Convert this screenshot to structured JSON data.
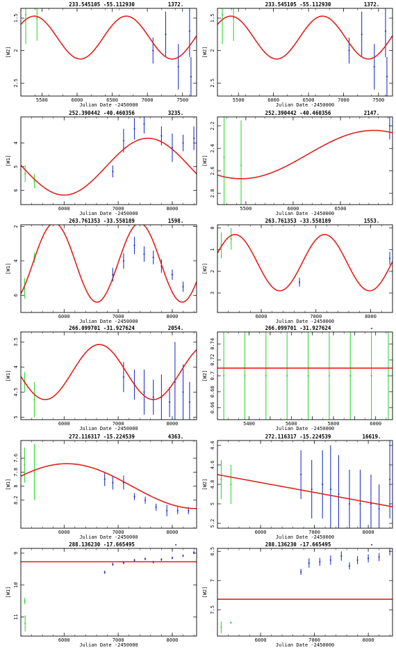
{
  "chart_data": [
    {
      "type": "scatter",
      "title_coords": "233.545105  -55.112930",
      "title_count": "1372.",
      "xlabel": "Julian Date -2450000",
      "ylabel": "[W2]",
      "xlim": [
        5200,
        7700
      ],
      "ylim": [
        2.7,
        1.35
      ],
      "xticks": [
        5500,
        6000,
        6500,
        7000,
        7500
      ],
      "yticks": [
        1.5,
        2,
        2.5
      ],
      "curve": {
        "type": "sine",
        "mean": 1.8,
        "amp": 0.33,
        "period": 1310,
        "peak_x": 5390
      },
      "green_points": [
        {
          "x": 5270,
          "y": 1.45,
          "err": 0.45
        },
        {
          "x": 5430,
          "y": 1.5,
          "err": 0.35
        }
      ],
      "blue_points": [
        {
          "x": 7080,
          "y": 2.0,
          "err": 0.2
        },
        {
          "x": 7260,
          "y": 1.75,
          "err": 0.35
        },
        {
          "x": 7440,
          "y": 2.25,
          "err": 0.35
        },
        {
          "x": 7600,
          "y": 1.7,
          "err": 0.4
        },
        {
          "x": 7620,
          "y": 2.4,
          "err": 0.3
        }
      ]
    },
    {
      "type": "scatter",
      "title_coords": "233.545105  -55.112930",
      "title_count": "1372.",
      "xlabel": "Julian Date -2450000",
      "ylabel": "[W2]",
      "xlim": [
        5200,
        7700
      ],
      "ylim": [
        2.7,
        1.35
      ],
      "xticks": [
        5500,
        6000,
        6500,
        7000,
        7500
      ],
      "yticks": [
        1.5,
        2,
        2.5
      ],
      "curve": {
        "type": "sine",
        "mean": 1.8,
        "amp": 0.33,
        "period": 1310,
        "peak_x": 5390
      },
      "green_points": [
        {
          "x": 5270,
          "y": 1.45,
          "err": 0.45
        },
        {
          "x": 5430,
          "y": 1.5,
          "err": 0.35
        }
      ],
      "blue_points": [
        {
          "x": 7080,
          "y": 2.0,
          "err": 0.2
        },
        {
          "x": 7260,
          "y": 1.75,
          "err": 0.35
        },
        {
          "x": 7440,
          "y": 2.25,
          "err": 0.35
        },
        {
          "x": 7600,
          "y": 1.7,
          "err": 0.4
        },
        {
          "x": 7620,
          "y": 2.4,
          "err": 0.3
        }
      ]
    },
    {
      "type": "scatter",
      "title_coords": "252.390442  -40.460356",
      "title_count": "3235.",
      "xlabel": "Julian Date -2450000",
      "ylabel": "[W1]",
      "xlim": [
        5200,
        8450
      ],
      "ylim": [
        6.6,
        2.9
      ],
      "xticks": [
        6000,
        7000,
        8000
      ],
      "yticks": [
        4,
        5,
        6
      ],
      "curve": {
        "type": "sine",
        "mean": 5.0,
        "amp": 1.2,
        "period": 3100,
        "peak_x": 7550
      },
      "green_points": [
        {
          "x": 5280,
          "y": 5.3,
          "err": 0.35
        },
        {
          "x": 5450,
          "y": 5.6,
          "err": 0.3
        }
      ],
      "blue_points": [
        {
          "x": 6900,
          "y": 5.2,
          "err": 0.25
        },
        {
          "x": 7100,
          "y": 3.9,
          "err": 0.5
        },
        {
          "x": 7300,
          "y": 3.4,
          "err": 0.45
        },
        {
          "x": 7480,
          "y": 3.2,
          "err": 0.4
        },
        {
          "x": 7800,
          "y": 3.7,
          "err": 0.4
        },
        {
          "x": 8000,
          "y": 4.2,
          "err": 0.6
        },
        {
          "x": 8200,
          "y": 4.0,
          "err": 0.35
        },
        {
          "x": 8400,
          "y": 3.8,
          "err": 0.5
        }
      ]
    },
    {
      "type": "scatter",
      "title_coords": "252.390442  -40.460356",
      "title_count": "2147.",
      "xlabel": "Julian Date -2450000",
      "ylabel": "[W2]",
      "xlim": [
        5200,
        7050
      ],
      "ylim": [
        2.9,
        2.12
      ],
      "xticks": [
        5500,
        6000,
        6500
      ],
      "yticks": [
        2.2,
        2.4,
        2.6,
        2.8
      ],
      "curve": {
        "type": "sine",
        "mean": 2.455,
        "amp": 0.215,
        "period": 2800,
        "peak_x": 6850
      },
      "green_points": [
        {
          "x": 5270,
          "y": 2.48,
          "err": 0.42
        },
        {
          "x": 5450,
          "y": 2.55,
          "err": 0.4
        }
      ],
      "blue_points": [
        {
          "x": 7020,
          "y": 2.2,
          "err": 0.12
        }
      ]
    },
    {
      "type": "scatter",
      "title_coords": "263.761353  -33.558189",
      "title_count": "1598.",
      "xlabel": "Julian Date -2450000",
      "ylabel": "[W1]",
      "xlim": [
        5200,
        8450
      ],
      "ylim": [
        7.0,
        1.9
      ],
      "xticks": [
        6000,
        7000,
        8000
      ],
      "yticks": [
        2,
        4,
        6
      ],
      "curve": {
        "type": "sine",
        "mean": 4.1,
        "amp": 2.3,
        "period": 1575,
        "peak_x": 5820
      },
      "green_points": [
        {
          "x": 5270,
          "y": 5.6,
          "err": 0.6
        },
        {
          "x": 5450,
          "y": 3.8,
          "err": 0.3
        }
      ],
      "blue_points": [
        {
          "x": 6900,
          "y": 4.8,
          "err": 0.4
        },
        {
          "x": 7100,
          "y": 4.0,
          "err": 0.45
        },
        {
          "x": 7300,
          "y": 3.1,
          "err": 0.5
        },
        {
          "x": 7480,
          "y": 3.6,
          "err": 0.45
        },
        {
          "x": 7650,
          "y": 3.8,
          "err": 0.4
        },
        {
          "x": 7800,
          "y": 4.3,
          "err": 0.4
        },
        {
          "x": 8000,
          "y": 4.8,
          "err": 0.3
        },
        {
          "x": 8200,
          "y": 5.5,
          "err": 0.3
        }
      ]
    },
    {
      "type": "scatter",
      "title_coords": "263.761353  -33.558189",
      "title_count": "1553.",
      "xlabel": "Julian Date -2450000",
      "ylabel": "[W2]",
      "xlim": [
        5200,
        8400
      ],
      "ylim": [
        3.9,
        -0.15
      ],
      "xticks": [
        6000,
        7000,
        8000
      ],
      "yticks": [
        0,
        1,
        2,
        3
      ],
      "curve": {
        "type": "sine",
        "mean": 1.6,
        "amp": 1.3,
        "period": 1640,
        "peak_x": 5520
      },
      "green_points": [
        {
          "x": 5270,
          "y": 0.8,
          "err": 0.6
        },
        {
          "x": 5450,
          "y": 0.5,
          "err": 0.5
        }
      ],
      "blue_points": [
        {
          "x": 6700,
          "y": 2.5,
          "err": 0.2
        },
        {
          "x": 8350,
          "y": 1.4,
          "err": 0.3
        }
      ]
    },
    {
      "type": "scatter",
      "title_coords": "266.099701  -31.927624",
      "title_count": "2054.",
      "xlabel": "Julian Date -2450000",
      "ylabel": "[W1]",
      "xlim": [
        5200,
        8450
      ],
      "ylim": [
        5.05,
        3.3
      ],
      "xticks": [
        6000,
        7000,
        8000
      ],
      "yticks": [
        3.5,
        4,
        4.5,
        5
      ],
      "curve": {
        "type": "sine",
        "mean": 4.1,
        "amp": 0.55,
        "period": 2000,
        "peak_x": 6650
      },
      "green_points": [
        {
          "x": 5270,
          "y": 4.3,
          "err": 0.2
        },
        {
          "x": 5450,
          "y": 4.65,
          "err": 0.35
        }
      ],
      "blue_points": [
        {
          "x": 7100,
          "y": 4.2,
          "err": 0.3
        },
        {
          "x": 7300,
          "y": 4.35,
          "err": 0.3
        },
        {
          "x": 7480,
          "y": 4.5,
          "err": 0.45
        },
        {
          "x": 7650,
          "y": 4.6,
          "err": 0.35
        },
        {
          "x": 7800,
          "y": 4.6,
          "err": 0.45
        },
        {
          "x": 7950,
          "y": 4.7,
          "err": 0.3
        },
        {
          "x": 8050,
          "y": 4.3,
          "err": 0.8
        },
        {
          "x": 8200,
          "y": 4.5,
          "err": 0.55
        },
        {
          "x": 8320,
          "y": 4.7,
          "err": 0.4
        }
      ]
    },
    {
      "type": "scatter",
      "title_coords": "266.099701  -31.927624",
      "title_count": "-",
      "xlabel": "Julian Date -2450000",
      "ylabel": "[W2]",
      "xlim": [
        5250,
        6080
      ],
      "ylim": [
        0.645,
        0.755
      ],
      "xticks": [
        5400,
        5500,
        5600,
        5700,
        5800,
        5900,
        6000
      ],
      "tick_labels_shown": [
        5400,
        5600,
        5800,
        6000
      ],
      "yticks": [
        0.66,
        0.68,
        0.7,
        0.72,
        0.74
      ],
      "tick_labels_y": [
        "0.66",
        "0.68",
        "0.7",
        "0.72",
        "0.74"
      ],
      "curve": {
        "type": "constant",
        "value": 0.7097
      },
      "green_points": [
        {
          "x": 5280,
          "y": 0.7,
          "err": 0.06
        },
        {
          "x": 5380,
          "y": 0.7,
          "err": 0.06
        },
        {
          "x": 5480,
          "y": 0.7,
          "err": 0.06
        },
        {
          "x": 5580,
          "y": 0.7,
          "err": 0.06
        },
        {
          "x": 5680,
          "y": 0.7,
          "err": 0.06
        },
        {
          "x": 5780,
          "y": 0.7,
          "err": 0.06
        },
        {
          "x": 5880,
          "y": 0.7,
          "err": 0.06
        },
        {
          "x": 5980,
          "y": 0.7,
          "err": 0.06
        },
        {
          "x": 6060,
          "y": 0.7,
          "err": 0.06
        }
      ],
      "blue_points": []
    },
    {
      "type": "scatter",
      "title_coords": "272.116317  -15.224539",
      "title_count": "4363.",
      "xlabel": "Julian Date -2450000",
      "ylabel": "[W1]",
      "xlim": [
        5200,
        8450
      ],
      "ylim": [
        8.6,
        7.35
      ],
      "xticks": [
        6000,
        7000,
        8000
      ],
      "yticks": [
        7.6,
        7.8,
        8,
        8.2
      ],
      "tick_labels_y": [
        "7.6",
        "7.8",
        "8",
        "8.2"
      ],
      "curve": {
        "type": "sine",
        "mean": 8.0,
        "amp": 0.32,
        "period": 4800,
        "peak_x": 6050
      },
      "green_points": [
        {
          "x": 5270,
          "y": 7.7,
          "err": 0.25
        },
        {
          "x": 5450,
          "y": 7.8,
          "err": 0.4
        }
      ],
      "blue_points": [
        {
          "x": 6750,
          "y": 7.9,
          "err": 0.1
        },
        {
          "x": 6900,
          "y": 7.95,
          "err": 0.1
        },
        {
          "x": 7100,
          "y": 7.95,
          "err": 0.1
        },
        {
          "x": 7300,
          "y": 8.15,
          "err": 0.05
        },
        {
          "x": 7500,
          "y": 8.2,
          "err": 0.05
        },
        {
          "x": 7700,
          "y": 8.3,
          "err": 0.05
        },
        {
          "x": 7900,
          "y": 8.35,
          "err": 0.08
        },
        {
          "x": 8100,
          "y": 8.35,
          "err": 0.05
        },
        {
          "x": 8300,
          "y": 8.35,
          "err": 0.05
        }
      ]
    },
    {
      "type": "scatter",
      "title_coords": "272.116317  -15.224539",
      "title_count": "16619.",
      "xlabel": "Julian Date -2450000",
      "ylabel": "[W2]",
      "xlim": [
        5200,
        8450
      ],
      "ylim": [
        5.25,
        4.35
      ],
      "xticks": [
        6000,
        7000,
        8000
      ],
      "yticks": [
        4.4,
        4.6,
        4.8,
        5,
        5.2
      ],
      "tick_labels_y": [
        "4.4",
        "4.6",
        "4.8",
        "5",
        "5.2"
      ],
      "curve": {
        "type": "linear",
        "y_at_xmin": 4.7,
        "y_at_xmax": 5.03
      },
      "green_points": [
        {
          "x": 5270,
          "y": 4.75,
          "err": 0.2
        },
        {
          "x": 5450,
          "y": 4.8,
          "err": 0.2
        }
      ],
      "blue_points": [
        {
          "x": 6750,
          "y": 4.7,
          "err": 0.25
        },
        {
          "x": 6950,
          "y": 4.85,
          "err": 0.3
        },
        {
          "x": 7150,
          "y": 4.8,
          "err": 0.35
        },
        {
          "x": 7300,
          "y": 4.85,
          "err": 0.45
        },
        {
          "x": 7450,
          "y": 4.9,
          "err": 0.4
        },
        {
          "x": 7650,
          "y": 5.0,
          "err": 0.35
        },
        {
          "x": 7850,
          "y": 5.0,
          "err": 0.35
        },
        {
          "x": 8050,
          "y": 5.0,
          "err": 0.3
        },
        {
          "x": 8200,
          "y": 5.05,
          "err": 0.25
        },
        {
          "x": 8400,
          "y": 4.75,
          "err": 0.4
        }
      ]
    },
    {
      "type": "scatter",
      "title_coords": "288.136230  -17.665495",
      "title_count": "-",
      "xlabel": "Julian Date -2450000",
      "ylabel": "[W1]",
      "xlim": [
        5200,
        8450
      ],
      "ylim": [
        11.6,
        8.85
      ],
      "xticks": [
        6000,
        7000,
        8000
      ],
      "yticks": [
        9,
        10,
        11
      ],
      "curve": {
        "type": "constant",
        "value": 9.27
      },
      "green_points": [
        {
          "x": 5270,
          "y": 10.5,
          "err": 0.1
        },
        {
          "x": 5280,
          "y": 11.2,
          "err": 0.25
        }
      ],
      "blue_points": [
        {
          "x": 6750,
          "y": 9.6,
          "err": 0.05
        },
        {
          "x": 6900,
          "y": 9.35,
          "err": 0.05
        },
        {
          "x": 7100,
          "y": 9.3,
          "err": 0.05
        },
        {
          "x": 7300,
          "y": 9.22,
          "err": 0.04
        },
        {
          "x": 7500,
          "y": 9.18,
          "err": 0.04
        },
        {
          "x": 7650,
          "y": 9.28,
          "err": 0.04
        },
        {
          "x": 7800,
          "y": 9.2,
          "err": 0.04
        },
        {
          "x": 8000,
          "y": 9.15,
          "err": 0.04
        },
        {
          "x": 8200,
          "y": 9.08,
          "err": 0.04
        },
        {
          "x": 8400,
          "y": 8.98,
          "err": 0.05
        }
      ]
    },
    {
      "type": "scatter",
      "title_coords": "288.136230  -17.665495",
      "title_count": "-",
      "xlabel": "Julian Date -2450000",
      "ylabel": "[W2]",
      "xlim": [
        5200,
        8450
      ],
      "ylim": [
        7.95,
        6.45
      ],
      "xticks": [
        6000,
        7000,
        8000
      ],
      "yticks": [
        6.5,
        7,
        7.5
      ],
      "curve": {
        "type": "constant",
        "value": 7.32
      },
      "green_points": [
        {
          "x": 5270,
          "y": 7.8,
          "err": 0.1
        },
        {
          "x": 5450,
          "y": 7.72,
          "err": 0.02
        }
      ],
      "blue_points": [
        {
          "x": 6750,
          "y": 6.85,
          "err": 0.05
        },
        {
          "x": 6900,
          "y": 6.7,
          "err": 0.08
        },
        {
          "x": 7100,
          "y": 6.68,
          "err": 0.07
        },
        {
          "x": 7300,
          "y": 6.65,
          "err": 0.08
        },
        {
          "x": 7500,
          "y": 6.58,
          "err": 0.08
        },
        {
          "x": 7650,
          "y": 6.75,
          "err": 0.06
        },
        {
          "x": 7800,
          "y": 6.65,
          "err": 0.07
        },
        {
          "x": 8000,
          "y": 6.62,
          "err": 0.07
        },
        {
          "x": 8200,
          "y": 6.6,
          "err": 0.07
        },
        {
          "x": 8400,
          "y": 6.5,
          "err": 0.07
        }
      ]
    }
  ],
  "colors": {
    "model_curve": "#e0201a",
    "green_data": "#35d835",
    "blue_data": "#2233cc",
    "frame": "#000000"
  }
}
